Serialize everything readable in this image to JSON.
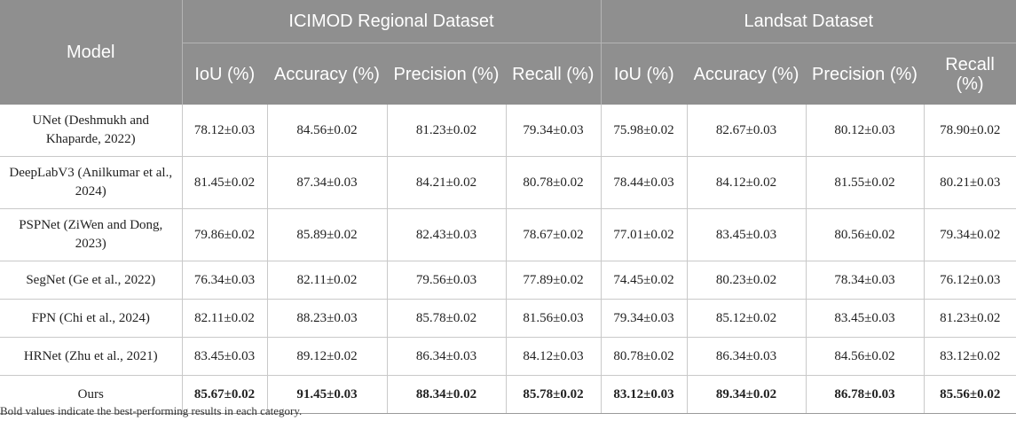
{
  "header": {
    "model": "Model",
    "groups": [
      "ICIMOD Regional Dataset",
      "Landsat Dataset"
    ],
    "metrics": [
      "IoU (%)",
      "Accuracy (%)",
      "Precision (%)",
      "Recall (%)"
    ]
  },
  "rows": [
    {
      "model": "UNet (Deshmukh and Khaparde, 2022)",
      "values": [
        "78.12±0.03",
        "84.56±0.02",
        "81.23±0.02",
        "79.34±0.03",
        "75.98±0.02",
        "82.67±0.03",
        "80.12±0.03",
        "78.90±0.02"
      ]
    },
    {
      "model": "DeepLabV3 (Anilkumar et al., 2024)",
      "values": [
        "81.45±0.02",
        "87.34±0.03",
        "84.21±0.02",
        "80.78±0.02",
        "78.44±0.03",
        "84.12±0.02",
        "81.55±0.02",
        "80.21±0.03"
      ]
    },
    {
      "model": "PSPNet (ZiWen and Dong, 2023)",
      "values": [
        "79.86±0.02",
        "85.89±0.02",
        "82.43±0.03",
        "78.67±0.02",
        "77.01±0.02",
        "83.45±0.03",
        "80.56±0.02",
        "79.34±0.02"
      ]
    },
    {
      "model": "SegNet (Ge et al., 2022)",
      "values": [
        "76.34±0.03",
        "82.11±0.02",
        "79.56±0.03",
        "77.89±0.02",
        "74.45±0.02",
        "80.23±0.02",
        "78.34±0.03",
        "76.12±0.03"
      ]
    },
    {
      "model": "FPN (Chi et al., 2024)",
      "values": [
        "82.11±0.02",
        "88.23±0.03",
        "85.78±0.02",
        "81.56±0.03",
        "79.34±0.03",
        "85.12±0.02",
        "83.45±0.03",
        "81.23±0.02"
      ]
    },
    {
      "model": "HRNet (Zhu et al., 2021)",
      "values": [
        "83.45±0.03",
        "89.12±0.02",
        "86.34±0.03",
        "84.12±0.03",
        "80.78±0.02",
        "86.34±0.03",
        "84.56±0.02",
        "83.12±0.02"
      ]
    },
    {
      "model": "Ours",
      "values": [
        "85.67±0.02",
        "91.45±0.03",
        "88.34±0.02",
        "85.78±0.02",
        "83.12±0.03",
        "89.34±0.02",
        "86.78±0.03",
        "85.56±0.02"
      ]
    }
  ],
  "footnote": "Bold values indicate the best-performing results in each category."
}
